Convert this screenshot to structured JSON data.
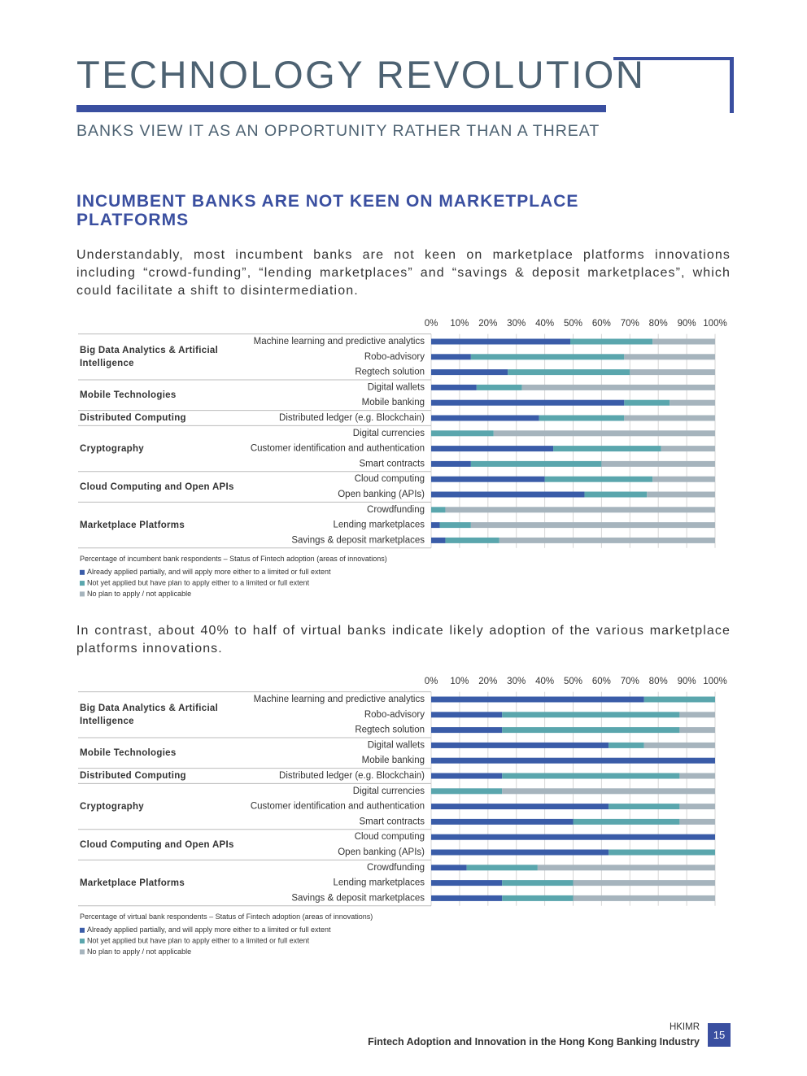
{
  "header": {
    "title": "TECHNOLOGY REVOLUTION",
    "subtitle": "BANKS VIEW IT AS AN OPPORTUNITY RATHER THAN A THREAT"
  },
  "section": {
    "heading": "INCUMBENT BANKS ARE NOT KEEN ON MARKETPLACE PLATFORMS",
    "paragraphs": [
      "Understandably, most incumbent banks are not keen on marketplace platforms innovations including “crowd-funding”, “lending marketplaces” and “savings & deposit marketplaces”, which could facilitate a shift to disintermediation.",
      "In contrast, about 40% to half of virtual banks indicate likely adoption of the various marketplace platforms innovations."
    ]
  },
  "chart_data": [
    {
      "type": "stacked_bar_h",
      "caption": "Percentage of incumbent bank respondents – Status of Fintech adoption (areas of innovations)",
      "groups": [
        {
          "name": "Big Data Analytics & Artificial Intelligence",
          "categories": [
            "Machine learning and predictive analytics",
            "Robo-advisory",
            "Regtech solution"
          ]
        },
        {
          "name": "Mobile Technologies",
          "categories": [
            "Digital wallets",
            "Mobile banking"
          ]
        },
        {
          "name": "Distributed Computing",
          "categories": [
            "Distributed ledger (e.g. Blockchain)"
          ]
        },
        {
          "name": "Cryptography",
          "categories": [
            "Digital currencies",
            "Customer identification and authentication",
            "Smart contracts"
          ]
        },
        {
          "name": "Cloud Computing and Open APIs",
          "categories": [
            "Cloud computing",
            "Open banking (APIs)"
          ]
        },
        {
          "name": "Marketplace Platforms",
          "categories": [
            "Crowdfunding",
            "Lending marketplaces",
            "Savings & deposit marketplaces"
          ]
        }
      ],
      "series": [
        {
          "name": "Already applied partially, and will apply more either to a limited or full extent",
          "color": "#3a5ca8",
          "values": [
            49,
            14,
            27,
            16,
            68,
            38,
            0,
            43,
            14,
            40,
            54,
            0,
            3,
            5
          ]
        },
        {
          "name": "Not yet applied but have plan to apply either to a limited or full extent",
          "color": "#5aa6ad",
          "values": [
            29,
            54,
            43,
            16,
            16,
            30,
            22,
            38,
            46,
            38,
            22,
            5,
            11,
            19
          ]
        },
        {
          "name": "No plan to apply / not applicable",
          "color": "#a6b4bd",
          "values": [
            22,
            32,
            30,
            68,
            16,
            32,
            78,
            19,
            40,
            22,
            24,
            95,
            86,
            76
          ]
        }
      ],
      "xlim": [
        0,
        100
      ],
      "xticks": [
        {
          "value": 0,
          "label": "0%"
        },
        {
          "value": 10,
          "label": "10%"
        },
        {
          "value": 20,
          "label": "20%"
        },
        {
          "value": 30,
          "label": "30%"
        },
        {
          "value": 40,
          "label": "40%"
        },
        {
          "value": 50,
          "label": "50%"
        },
        {
          "value": 60,
          "label": "60%"
        },
        {
          "value": 70,
          "label": "70%"
        },
        {
          "value": 80,
          "label": "80%"
        },
        {
          "value": 90,
          "label": "90%"
        },
        {
          "value": 100,
          "label": "100%"
        }
      ],
      "grid": true
    },
    {
      "type": "stacked_bar_h",
      "caption": "Percentage of virtual bank respondents – Status of Fintech adoption (areas of innovations)",
      "groups": [
        {
          "name": "Big Data Analytics & Artificial Intelligence",
          "categories": [
            "Machine learning and predictive analytics",
            "Robo-advisory",
            "Regtech solution"
          ]
        },
        {
          "name": "Mobile Technologies",
          "categories": [
            "Digital wallets",
            "Mobile banking"
          ]
        },
        {
          "name": "Distributed Computing",
          "categories": [
            "Distributed ledger (e.g. Blockchain)"
          ]
        },
        {
          "name": "Cryptography",
          "categories": [
            "Digital currencies",
            "Customer identification and authentication",
            "Smart contracts"
          ]
        },
        {
          "name": "Cloud Computing and Open APIs",
          "categories": [
            "Cloud computing",
            "Open banking (APIs)"
          ]
        },
        {
          "name": "Marketplace Platforms",
          "categories": [
            "Crowdfunding",
            "Lending marketplaces",
            "Savings & deposit marketplaces"
          ]
        }
      ],
      "series": [
        {
          "name": "Already applied partially, and will apply more either to a limited or full extent",
          "color": "#3a5ca8",
          "values": [
            75,
            25,
            25,
            62.5,
            100,
            25,
            0,
            62.5,
            50,
            100,
            62.5,
            12.5,
            25,
            25
          ]
        },
        {
          "name": "Not yet applied but have plan to apply either to a limited or full extent",
          "color": "#5aa6ad",
          "values": [
            25,
            62.5,
            62.5,
            12.5,
            0,
            62.5,
            25,
            25,
            37.5,
            0,
            37.5,
            25,
            25,
            25
          ]
        },
        {
          "name": "No plan to apply / not applicable",
          "color": "#a6b4bd",
          "values": [
            0,
            12.5,
            12.5,
            25,
            0,
            12.5,
            75,
            12.5,
            12.5,
            0,
            0,
            62.5,
            50,
            50
          ]
        }
      ],
      "xlim": [
        0,
        100
      ],
      "xticks": [
        {
          "value": 0,
          "label": "0%"
        },
        {
          "value": 10,
          "label": "10%"
        },
        {
          "value": 20,
          "label": "20%"
        },
        {
          "value": 30,
          "label": "30%"
        },
        {
          "value": 40,
          "label": "40%"
        },
        {
          "value": 50,
          "label": "50%"
        },
        {
          "value": 60,
          "label": "60%"
        },
        {
          "value": 70,
          "label": "70%"
        },
        {
          "value": 80,
          "label": "80%"
        },
        {
          "value": 90,
          "label": "90%"
        },
        {
          "value": 100,
          "label": "100%"
        }
      ],
      "grid": true
    }
  ],
  "footer": {
    "org": "HKIMR",
    "publication": "Fintech Adoption and Innovation in the Hong Kong Banking Industry",
    "page": "15"
  }
}
